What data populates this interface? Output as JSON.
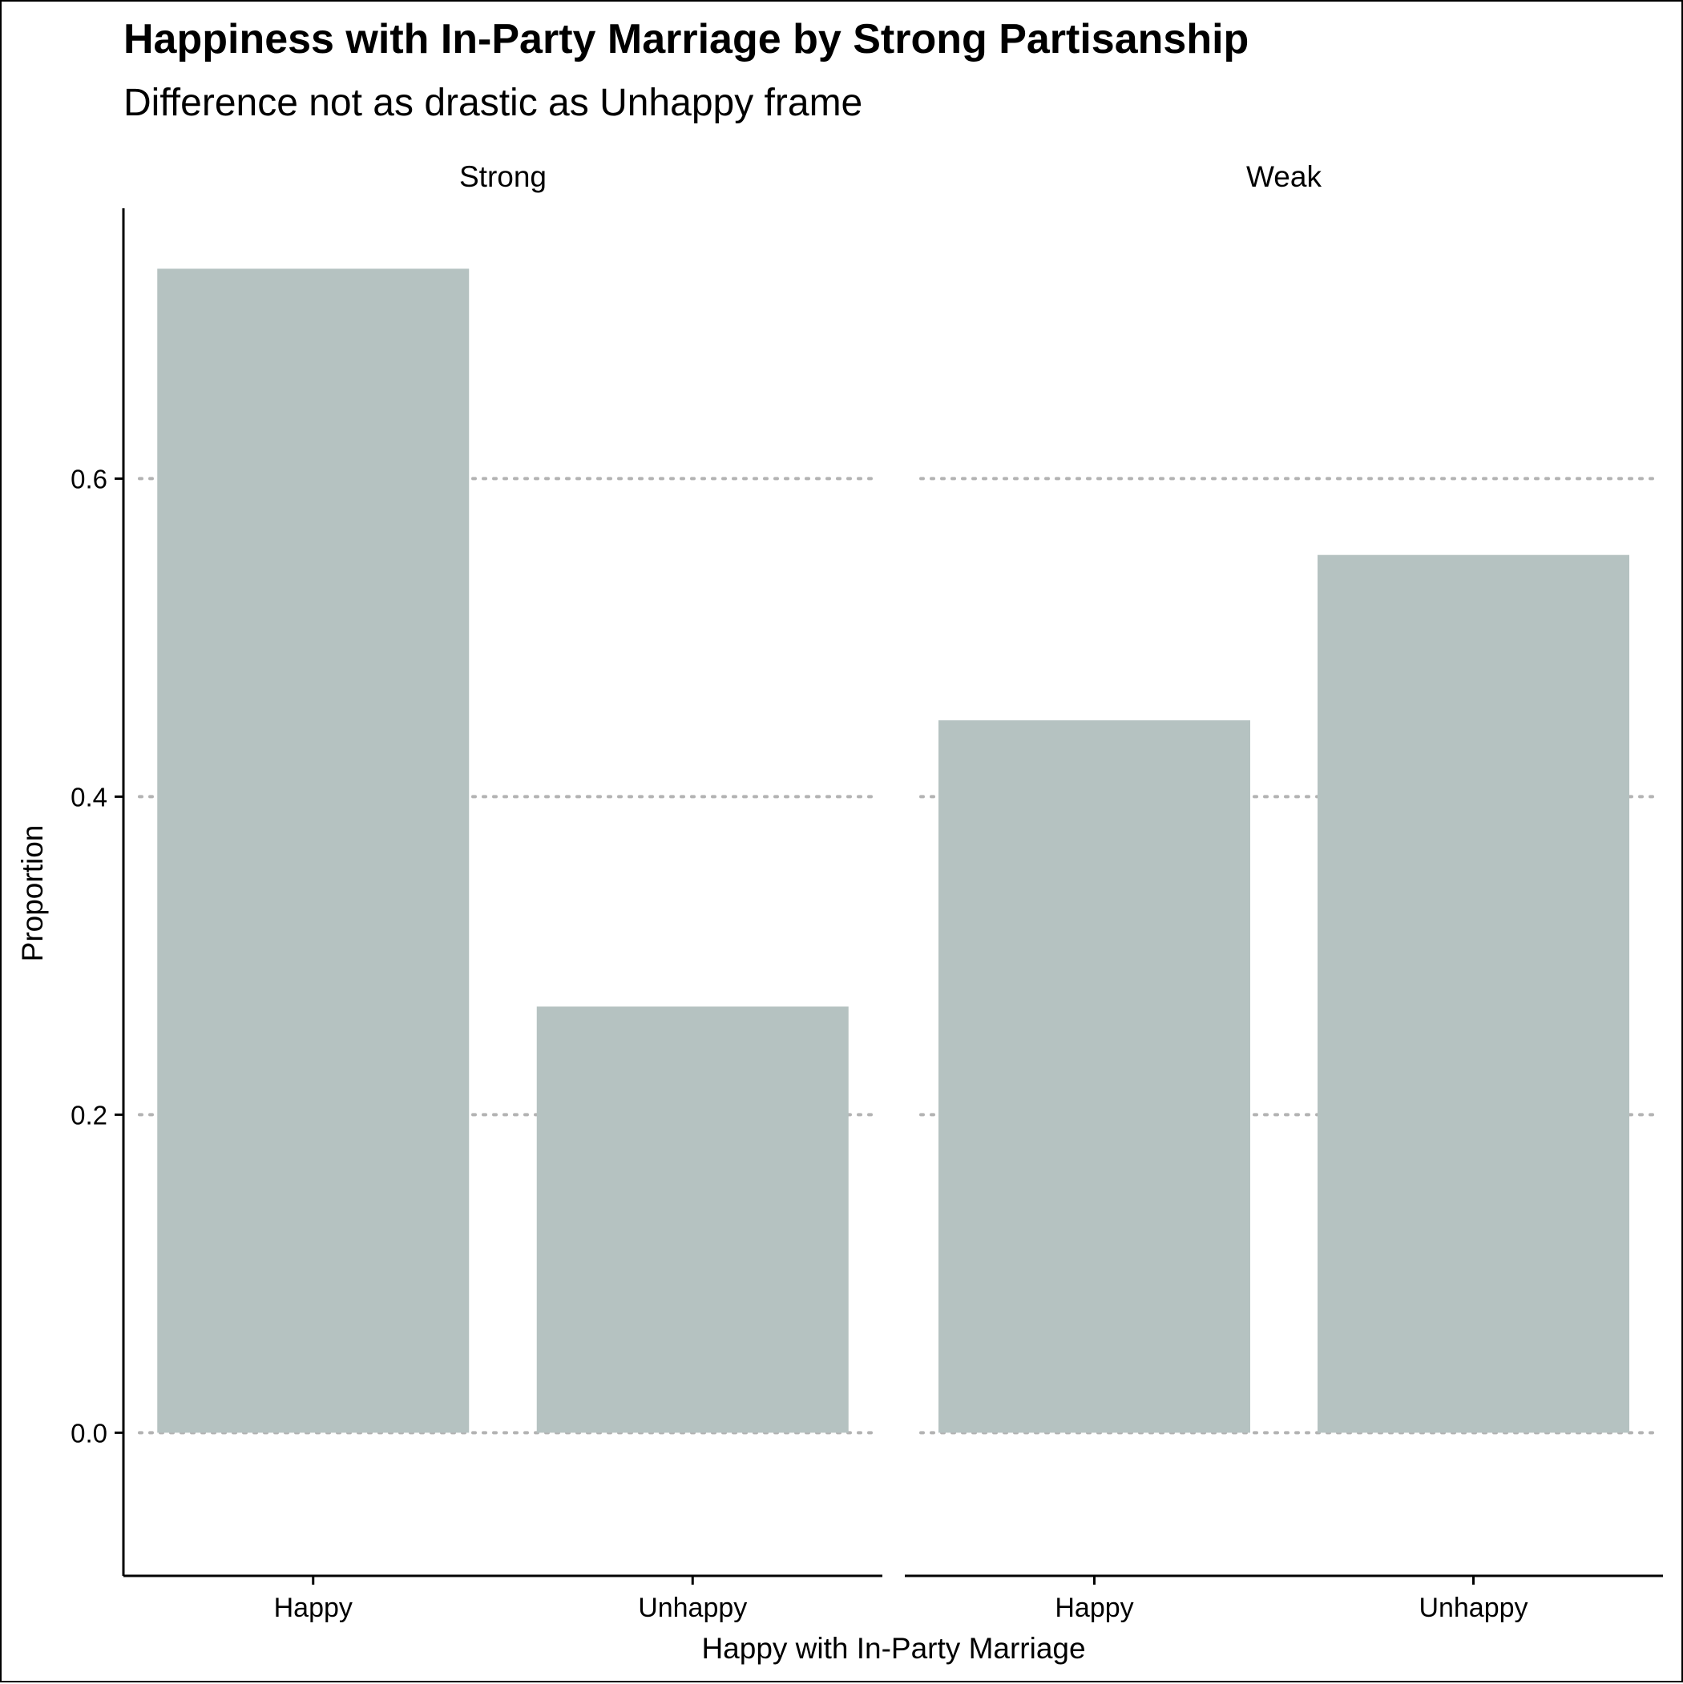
{
  "chart_data": {
    "type": "bar",
    "title": "Happiness with In-Party Marriage by Strong Partisanship",
    "subtitle": "Difference not as drastic as Unhappy frame",
    "xlabel": "Happy with In-Party Marriage",
    "ylabel": "Proportion",
    "ylim": [
      -0.09,
      0.77
    ],
    "yticks": [
      0.0,
      0.2,
      0.4,
      0.6
    ],
    "ytick_labels": [
      "0.0",
      "0.2",
      "0.4",
      "0.6"
    ],
    "grid": "horizontal dotted",
    "bar_color": "#b5c2c1",
    "facets": [
      {
        "label": "Strong",
        "categories": [
          "Happy",
          "Unhappy"
        ],
        "values": [
          0.732,
          0.268
        ]
      },
      {
        "label": "Weak",
        "categories": [
          "Happy",
          "Unhappy"
        ],
        "values": [
          0.448,
          0.552
        ]
      }
    ]
  }
}
